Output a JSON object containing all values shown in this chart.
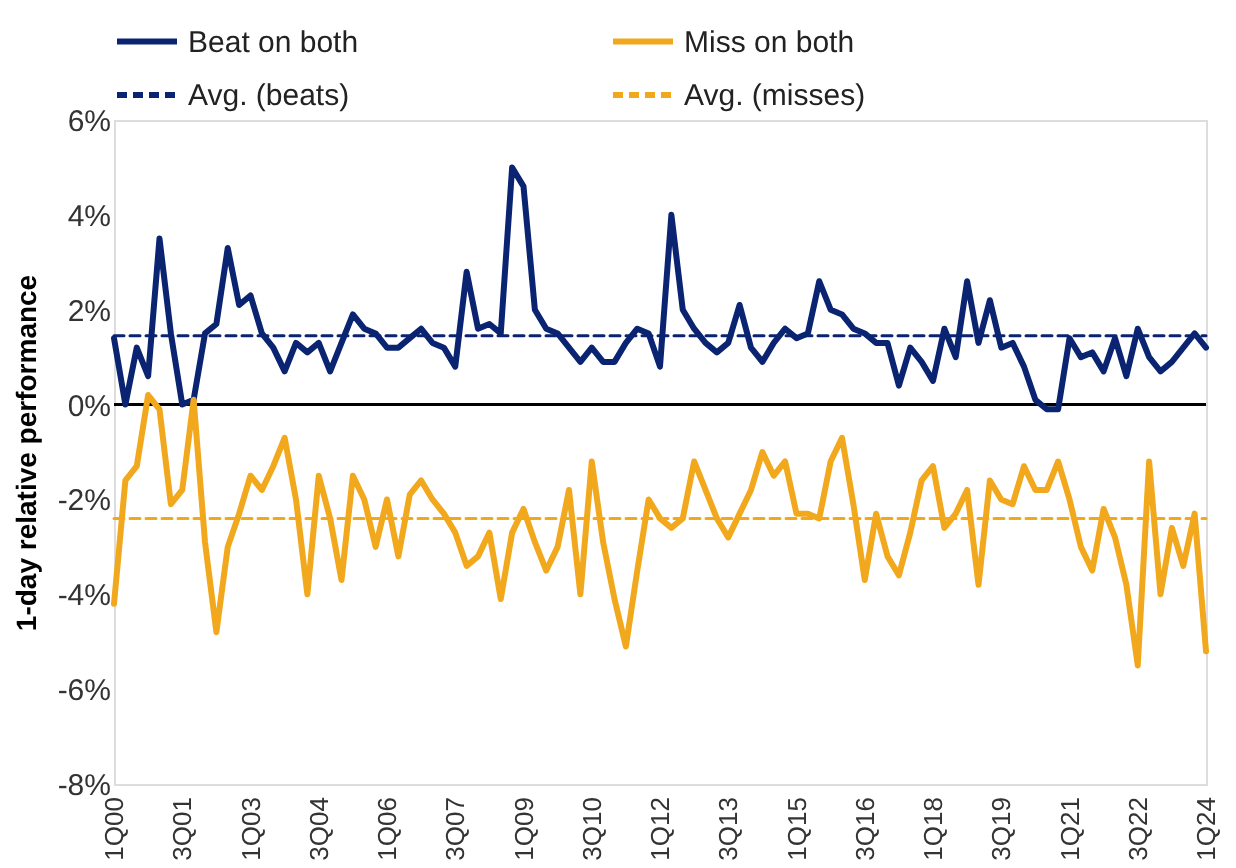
{
  "chart_data": {
    "type": "line",
    "ylabel": "1-day relative performance",
    "legend": "top",
    "grid": false,
    "categories": [
      "1Q00",
      null,
      null,
      null,
      null,
      null,
      "3Q01",
      null,
      null,
      null,
      null,
      null,
      "1Q03",
      null,
      null,
      null,
      null,
      null,
      "3Q04",
      null,
      null,
      null,
      null,
      null,
      "1Q06",
      null,
      null,
      null,
      null,
      null,
      "3Q07",
      null,
      null,
      null,
      null,
      null,
      "1Q09",
      null,
      null,
      null,
      null,
      null,
      "3Q10",
      null,
      null,
      null,
      null,
      null,
      "1Q12",
      null,
      null,
      null,
      null,
      null,
      "3Q13",
      null,
      null,
      null,
      null,
      null,
      "1Q15",
      null,
      null,
      null,
      null,
      null,
      "3Q16",
      null,
      null,
      null,
      null,
      null,
      "1Q18",
      null,
      null,
      null,
      null,
      null,
      "3Q19",
      null,
      null,
      null,
      null,
      null,
      "1Q21",
      null,
      null,
      null,
      null,
      null,
      "3Q22",
      null,
      null,
      null,
      null,
      null,
      "1Q24"
    ],
    "ylim": [
      -8,
      6
    ],
    "yticks": [
      {
        "value": -8,
        "label": "-8%"
      },
      {
        "value": -6,
        "label": "-6%"
      },
      {
        "value": -4,
        "label": "-4%"
      },
      {
        "value": -2,
        "label": "-2%"
      },
      {
        "value": 0,
        "label": "0%"
      },
      {
        "value": 2,
        "label": "2%"
      },
      {
        "value": 4,
        "label": "4%"
      },
      {
        "value": 6,
        "label": "6%"
      }
    ],
    "ref_lines": [
      {
        "axis": "y",
        "value": 0,
        "color": "#000000"
      }
    ],
    "series": [
      {
        "name": "Beat on both",
        "color": "#0a2472",
        "line_style": "solid",
        "values": [
          1.4,
          0.0,
          1.2,
          0.6,
          3.5,
          1.5,
          0.0,
          0.1,
          1.5,
          1.7,
          3.3,
          2.1,
          2.3,
          1.5,
          1.2,
          0.7,
          1.3,
          1.1,
          1.3,
          0.7,
          1.3,
          1.9,
          1.6,
          1.5,
          1.2,
          1.2,
          1.4,
          1.6,
          1.3,
          1.2,
          0.8,
          2.8,
          1.6,
          1.7,
          1.5,
          5.0,
          4.6,
          2.0,
          1.6,
          1.5,
          1.2,
          0.9,
          1.2,
          0.9,
          0.9,
          1.3,
          1.6,
          1.5,
          0.8,
          4.0,
          2.0,
          1.6,
          1.3,
          1.1,
          1.3,
          2.1,
          1.2,
          0.9,
          1.3,
          1.6,
          1.4,
          1.5,
          2.6,
          2.0,
          1.9,
          1.6,
          1.5,
          1.3,
          1.3,
          0.4,
          1.2,
          0.9,
          0.5,
          1.6,
          1.0,
          2.6,
          1.3,
          2.2,
          1.2,
          1.3,
          0.8,
          0.1,
          -0.1,
          -0.1,
          1.4,
          1.0,
          1.1,
          0.7,
          1.4,
          0.6,
          1.6,
          1.0,
          0.7,
          0.9,
          1.2,
          1.5,
          1.2
        ]
      },
      {
        "name": "Miss on both",
        "color": "#f2a81d",
        "line_style": "solid",
        "values": [
          -4.2,
          -1.6,
          -1.3,
          0.2,
          -0.1,
          -2.1,
          -1.8,
          0.1,
          -2.9,
          -4.8,
          -3.0,
          -2.3,
          -1.5,
          -1.8,
          -1.3,
          -0.7,
          -2.0,
          -4.0,
          -1.5,
          -2.4,
          -3.7,
          -1.5,
          -2.0,
          -3.0,
          -2.0,
          -3.2,
          -1.9,
          -1.6,
          -2.0,
          -2.3,
          -2.7,
          -3.4,
          -3.2,
          -2.7,
          -4.1,
          -2.7,
          -2.2,
          -2.9,
          -3.5,
          -3.0,
          -1.8,
          -4.0,
          -1.2,
          -2.9,
          -4.1,
          -5.1,
          -3.5,
          -2.0,
          -2.4,
          -2.6,
          -2.4,
          -1.2,
          -1.8,
          -2.4,
          -2.8,
          -2.3,
          -1.8,
          -1.0,
          -1.5,
          -1.2,
          -2.3,
          -2.3,
          -2.4,
          -1.2,
          -0.7,
          -2.1,
          -3.7,
          -2.3,
          -3.2,
          -3.6,
          -2.7,
          -1.6,
          -1.3,
          -2.6,
          -2.3,
          -1.8,
          -3.8,
          -1.6,
          -2.0,
          -2.1,
          -1.3,
          -1.8,
          -1.8,
          -1.2,
          -2.0,
          -3.0,
          -3.5,
          -2.2,
          -2.8,
          -3.8,
          -5.5,
          -1.2,
          -4.0,
          -2.6,
          -3.4,
          -2.3,
          -5.2
        ]
      },
      {
        "name": "Avg. (beats)",
        "color": "#0a2472",
        "line_style": "dashed",
        "values": [
          1.45,
          1.45,
          1.45,
          1.45,
          1.45,
          1.45,
          1.45,
          1.45,
          1.45,
          1.45,
          1.45,
          1.45,
          1.45,
          1.45,
          1.45,
          1.45,
          1.45,
          1.45,
          1.45,
          1.45,
          1.45,
          1.45,
          1.45,
          1.45,
          1.45,
          1.45,
          1.45,
          1.45,
          1.45,
          1.45,
          1.45,
          1.45,
          1.45,
          1.45,
          1.45,
          1.45,
          1.45,
          1.45,
          1.45,
          1.45,
          1.45,
          1.45,
          1.45,
          1.45,
          1.45,
          1.45,
          1.45,
          1.45,
          1.45,
          1.45,
          1.45,
          1.45,
          1.45,
          1.45,
          1.45,
          1.45,
          1.45,
          1.45,
          1.45,
          1.45,
          1.45,
          1.45,
          1.45,
          1.45,
          1.45,
          1.45,
          1.45,
          1.45,
          1.45,
          1.45,
          1.45,
          1.45,
          1.45,
          1.45,
          1.45,
          1.45,
          1.45,
          1.45,
          1.45,
          1.45,
          1.45,
          1.45,
          1.45,
          1.45,
          1.45,
          1.45,
          1.45,
          1.45,
          1.45,
          1.45,
          1.45,
          1.45,
          1.45,
          1.45,
          1.45,
          1.45,
          1.45
        ]
      },
      {
        "name": "Avg. (misses)",
        "color": "#f2a81d",
        "line_style": "dashed",
        "values": [
          -2.4,
          -2.4,
          -2.4,
          -2.4,
          -2.4,
          -2.4,
          -2.4,
          -2.4,
          -2.4,
          -2.4,
          -2.4,
          -2.4,
          -2.4,
          -2.4,
          -2.4,
          -2.4,
          -2.4,
          -2.4,
          -2.4,
          -2.4,
          -2.4,
          -2.4,
          -2.4,
          -2.4,
          -2.4,
          -2.4,
          -2.4,
          -2.4,
          -2.4,
          -2.4,
          -2.4,
          -2.4,
          -2.4,
          -2.4,
          -2.4,
          -2.4,
          -2.4,
          -2.4,
          -2.4,
          -2.4,
          -2.4,
          -2.4,
          -2.4,
          -2.4,
          -2.4,
          -2.4,
          -2.4,
          -2.4,
          -2.4,
          -2.4,
          -2.4,
          -2.4,
          -2.4,
          -2.4,
          -2.4,
          -2.4,
          -2.4,
          -2.4,
          -2.4,
          -2.4,
          -2.4,
          -2.4,
          -2.4,
          -2.4,
          -2.4,
          -2.4,
          -2.4,
          -2.4,
          -2.4,
          -2.4,
          -2.4,
          -2.4,
          -2.4,
          -2.4,
          -2.4,
          -2.4,
          -2.4,
          -2.4,
          -2.4,
          -2.4,
          -2.4,
          -2.4,
          -2.4,
          -2.4,
          -2.4,
          -2.4,
          -2.4,
          -2.4,
          -2.4,
          -2.4,
          -2.4,
          -2.4,
          -2.4,
          -2.4,
          -2.4,
          -2.4,
          -2.4
        ]
      }
    ]
  }
}
